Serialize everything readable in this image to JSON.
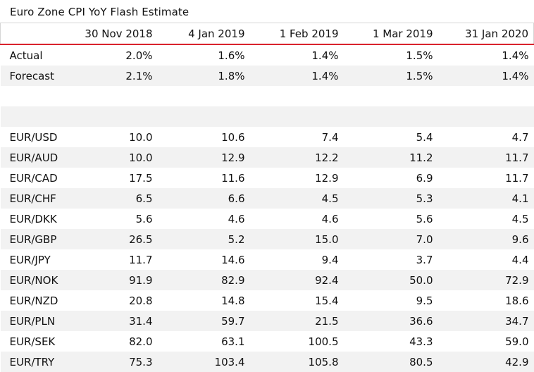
{
  "title": "Euro Zone CPI YoY Flash Estimate",
  "table": {
    "columns": [
      "",
      "30 Nov 2018",
      "4 Jan 2019",
      "1 Feb 2019",
      "1 Mar 2019",
      "31 Jan 2020"
    ],
    "rows": [
      [
        "Actual",
        "2.0%",
        "1.6%",
        "1.4%",
        "1.5%",
        "1.4%"
      ],
      [
        "Forecast",
        "2.1%",
        "1.8%",
        "1.4%",
        "1.5%",
        "1.4%"
      ],
      [
        "",
        "",
        "",
        "",
        "",
        ""
      ],
      [
        "",
        "",
        "",
        "",
        "",
        ""
      ],
      [
        "EUR/USD",
        "10.0",
        "10.6",
        "7.4",
        "5.4",
        "4.7"
      ],
      [
        "EUR/AUD",
        "10.0",
        "12.9",
        "12.2",
        "11.2",
        "11.7"
      ],
      [
        "EUR/CAD",
        "17.5",
        "11.6",
        "12.9",
        "6.9",
        "11.7"
      ],
      [
        "EUR/CHF",
        "6.5",
        "6.6",
        "4.5",
        "5.3",
        "4.1"
      ],
      [
        "EUR/DKK",
        "5.6",
        "4.6",
        "4.6",
        "5.6",
        "4.5"
      ],
      [
        "EUR/GBP",
        "26.5",
        "5.2",
        "15.0",
        "7.0",
        "9.6"
      ],
      [
        "EUR/JPY",
        "11.7",
        "14.6",
        "9.4",
        "3.7",
        "4.4"
      ],
      [
        "EUR/NOK",
        "91.9",
        "82.9",
        "92.4",
        "50.0",
        "72.9"
      ],
      [
        "EUR/NZD",
        "20.8",
        "14.8",
        "15.4",
        "9.5",
        "18.6"
      ],
      [
        "EUR/PLN",
        "31.4",
        "59.7",
        "21.5",
        "36.6",
        "34.7"
      ],
      [
        "EUR/SEK",
        "82.0",
        "63.1",
        "100.5",
        "43.3",
        "59.0"
      ],
      [
        "EUR/TRY",
        "75.3",
        "103.4",
        "105.8",
        "80.5",
        "42.9"
      ]
    ]
  },
  "colors": {
    "header_rule": "#d9232d",
    "band": "#f2f2f2"
  }
}
